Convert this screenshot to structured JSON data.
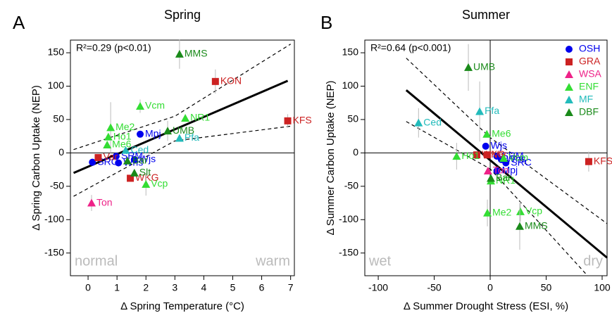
{
  "chart_data": [
    {
      "type": "scatter",
      "panel": "A",
      "title": "Spring",
      "xlabel": "Δ Spring Temperature (°C)",
      "ylabel": "Δ Spring Carbon Uptake (NEP)",
      "annotation": "R²=0.29 (p<0.01)",
      "corner_left": "normal",
      "corner_right": "warm",
      "xlim": [
        -0.61,
        7.13
      ],
      "ylim": [
        -184,
        169
      ],
      "xticks": [
        0,
        1,
        2,
        3,
        4,
        5,
        6,
        7
      ],
      "yticks": [
        -150,
        -100,
        -50,
        0,
        50,
        100,
        150
      ],
      "ref_lines": {
        "y": 0
      },
      "legend": false,
      "fit": {
        "x": [
          -0.5,
          6.9
        ],
        "y": [
          -30,
          108
        ]
      },
      "ci_upper": {
        "x": [
          -0.5,
          3,
          7
        ],
        "y": [
          5,
          55,
          163
        ]
      },
      "ci_lower": {
        "x": [
          -0.5,
          3,
          7
        ],
        "y": [
          -65,
          18,
          40
        ]
      },
      "series": [
        {
          "name": "OSH",
          "color": "#0000ee",
          "marker": "circle",
          "labels": [
            "Mpj",
            "SRM",
            "Wjs",
            "SRC",
            "Whs"
          ],
          "x": [
            1.8,
            0.97,
            1.6,
            0.15,
            1.05
          ],
          "y": [
            28,
            -5,
            -10,
            -14,
            -15
          ],
          "errors": [
            null,
            null,
            null,
            null,
            null
          ]
        },
        {
          "name": "GRA",
          "color": "#cc2222",
          "marker": "square",
          "labels": [
            "KON",
            "KFS",
            "Var",
            "WKG"
          ],
          "x": [
            4.4,
            6.9,
            0.35,
            1.46
          ],
          "y": [
            107,
            48,
            -7,
            -38
          ],
          "errors": [
            18,
            10,
            null,
            null
          ]
        },
        {
          "name": "WSA",
          "color": "#ee2288",
          "marker": "triangle",
          "labels": [
            "Ton"
          ],
          "x": [
            0.12
          ],
          "y": [
            -75
          ],
          "errors": [
            12
          ]
        },
        {
          "name": "ENF",
          "color": "#33dd33",
          "marker": "triangle",
          "labels": [
            "Vcm",
            "Me2",
            "Ho1",
            "Me6",
            "NR1",
            "Vcp"
          ],
          "x": [
            1.8,
            0.78,
            0.7,
            0.66,
            3.36,
            2.0
          ],
          "y": [
            70,
            38,
            24,
            12,
            52,
            -47
          ],
          "errors": [
            10,
            38,
            null,
            null,
            null,
            17
          ]
        },
        {
          "name": "MF",
          "color": "#22bbbb",
          "marker": "triangle",
          "labels": [
            "Ced",
            "Pfa"
          ],
          "x": [
            1.3,
            3.16
          ],
          "y": [
            4,
            22
          ],
          "errors": [
            null,
            null
          ]
        },
        {
          "name": "DBF",
          "color": "#1a8a1a",
          "marker": "triangle",
          "labels": [
            "MMS",
            "UMB",
            "Slt",
            "Bar"
          ],
          "x": [
            3.16,
            2.75,
            1.6,
            1.36
          ],
          "y": [
            148,
            33,
            -30,
            -12
          ],
          "errors": [
            22,
            15,
            null,
            null
          ]
        }
      ]
    },
    {
      "type": "scatter",
      "panel": "B",
      "title": "Summer",
      "xlabel": "Δ Summer Drought Stress (ESI, %)",
      "ylabel": "Δ Summer Carbon Uptake (NEP)",
      "annotation": "R²=0.64 (p<0.001)",
      "corner_left": "wet",
      "corner_right": "dry",
      "xlim": [
        -112,
        104.4
      ],
      "ylim": [
        -184,
        169
      ],
      "xticks": [
        -100,
        -50,
        0,
        50,
        100
      ],
      "yticks": [
        -150,
        -100,
        -50,
        0,
        50,
        100,
        150
      ],
      "ref_lines": {
        "x": 0,
        "y": 0
      },
      "legend": true,
      "fit": {
        "x": [
          -75,
          104.4
        ],
        "y": [
          94,
          -157
        ]
      },
      "ci_upper": {
        "x": [
          -75,
          0,
          104.4
        ],
        "y": [
          142,
          23,
          -106
        ]
      },
      "ci_lower": {
        "x": [
          -75,
          0,
          87
        ],
        "y": [
          47,
          -24,
          -184
        ]
      },
      "series": [
        {
          "name": "OSH",
          "color": "#0000ee",
          "marker": "circle",
          "labels": [
            "Wjs",
            "SRM",
            "SRC",
            "Mpj",
            "Whs"
          ],
          "x": [
            -4,
            6,
            14,
            6,
            10
          ],
          "y": [
            10,
            -5,
            -15,
            -27,
            -10
          ],
          "errors": [
            null,
            null,
            null,
            null,
            null
          ]
        },
        {
          "name": "GRA",
          "color": "#cc2222",
          "marker": "square",
          "labels": [
            "KFS",
            "WKG",
            "Var"
          ],
          "x": [
            88,
            -12,
            -2.5
          ],
          "y": [
            -13,
            -3,
            -3
          ],
          "errors": [
            15,
            null,
            null
          ]
        },
        {
          "name": "WSA",
          "color": "#ee2288",
          "marker": "triangle",
          "labels": [
            "Ton"
          ],
          "x": [
            -2
          ],
          "y": [
            -27
          ],
          "errors": [
            null
          ]
        },
        {
          "name": "ENF",
          "color": "#33dd33",
          "marker": "triangle",
          "labels": [
            "Me6",
            "Vcm",
            "Ho1",
            "Me2",
            "Vcp",
            "NR1"
          ],
          "x": [
            -3,
            12,
            -30,
            -2.5,
            27,
            0.6
          ],
          "y": [
            28,
            -8,
            -5,
            -90,
            -88,
            -42
          ],
          "errors": [
            null,
            null,
            20,
            20,
            15,
            null
          ]
        },
        {
          "name": "MF",
          "color": "#22bbbb",
          "marker": "triangle",
          "labels": [
            "Ced",
            "Pfa"
          ],
          "x": [
            -64,
            -9.4
          ],
          "y": [
            45,
            62
          ],
          "errors": [
            22,
            45
          ]
        },
        {
          "name": "DBF",
          "color": "#1a8a1a",
          "marker": "triangle",
          "labels": [
            "UMB",
            "MMS",
            "Bar"
          ],
          "x": [
            -19.5,
            26.4,
            0.6
          ],
          "y": [
            128,
            -110,
            -38
          ],
          "errors": [
            35,
            35,
            null
          ]
        }
      ]
    }
  ]
}
